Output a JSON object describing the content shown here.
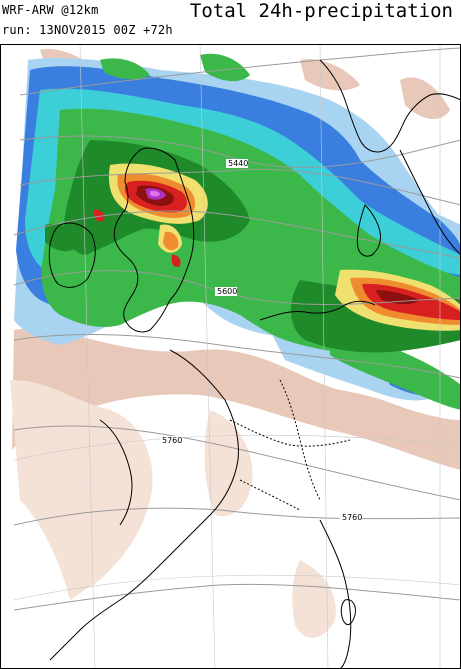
{
  "header": {
    "model_label": "WRF-ARW @12km",
    "run_label": "run: 13NOV2015 00Z +72h",
    "product_title": "Total 24h-precipitation"
  },
  "map": {
    "region": "Western Europe",
    "field": "24h precipitation (shaded)",
    "overlay": "geopotential height contours",
    "contour_labels": [
      "5440",
      "5600",
      "5760",
      "5760"
    ],
    "color_scale": {
      "light": "#e8c8b8",
      "very_light": "#f4e2d6",
      "pale_blue": "#a8d4f2",
      "blue": "#3a7fe0",
      "cyan": "#3ccfd8",
      "green": "#3cb84a",
      "dark_green": "#1f8a2a",
      "yellow": "#f0e070",
      "orange": "#f08c30",
      "red": "#d82020",
      "dark_red": "#8c1010",
      "purple": "#b030c0",
      "magenta": "#e070f0"
    }
  }
}
